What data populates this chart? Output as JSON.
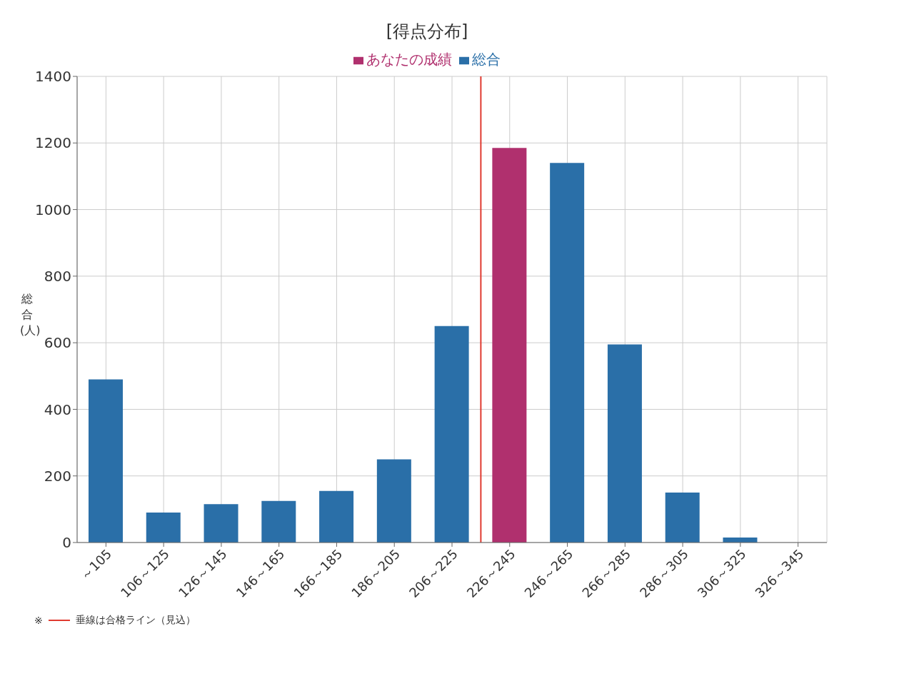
{
  "chart_data": {
    "type": "bar",
    "title": "[得点分布]",
    "ylabel": "総合(人)",
    "categories": [
      "～105",
      "106～125",
      "126～145",
      "146～165",
      "166～185",
      "186～205",
      "206～225",
      "226～245",
      "246～265",
      "266～285",
      "286～305",
      "306～325",
      "326～345"
    ],
    "series": [
      {
        "name": "あなたの成績",
        "color": "#b0306e",
        "values": [
          null,
          null,
          null,
          null,
          null,
          null,
          null,
          1185,
          null,
          null,
          null,
          null,
          null
        ]
      },
      {
        "name": "総合",
        "color": "#2a6fa8",
        "values": [
          490,
          90,
          115,
          125,
          155,
          250,
          650,
          null,
          1140,
          595,
          150,
          15,
          0
        ]
      }
    ],
    "stacked": true,
    "ylim": [
      0,
      1400
    ],
    "yticks": [
      0,
      200,
      400,
      600,
      800,
      1000,
      1200,
      1400
    ],
    "grid": true,
    "legend": "top",
    "ref_lines": [
      {
        "axis": "x",
        "value": "206～225",
        "color": "#e03a30"
      }
    ],
    "annotations": [
      "※",
      "垂線は合格ライン（見込）"
    ]
  }
}
